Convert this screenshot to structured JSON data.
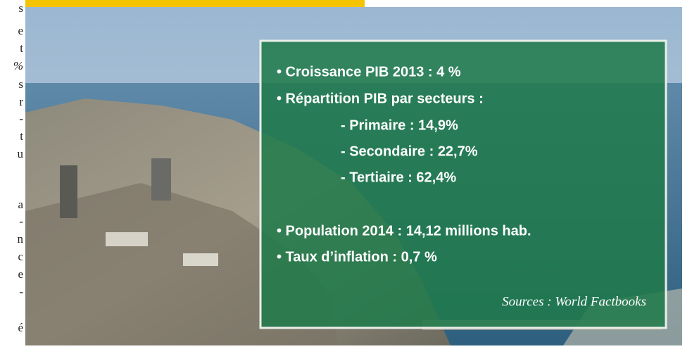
{
  "margin_text": [
    "s",
    "e",
    "t",
    "%",
    "s",
    "r",
    "-",
    "t",
    "u",
    "a",
    "-",
    "n",
    "c",
    "e",
    "-",
    "é"
  ],
  "panel": {
    "items": [
      "• Croissance PIB 2013 : 4 %",
      "• Répartition PIB par secteurs :",
      "- Primaire : 14,9%",
      "- Secondaire : 22,7%",
      "- Tertiaire : 62,4%",
      "• Population 2014 : 14,12 millions hab.",
      "• Taux d’inflation : 0,7 %"
    ],
    "source": "Sources : World Factbooks"
  }
}
